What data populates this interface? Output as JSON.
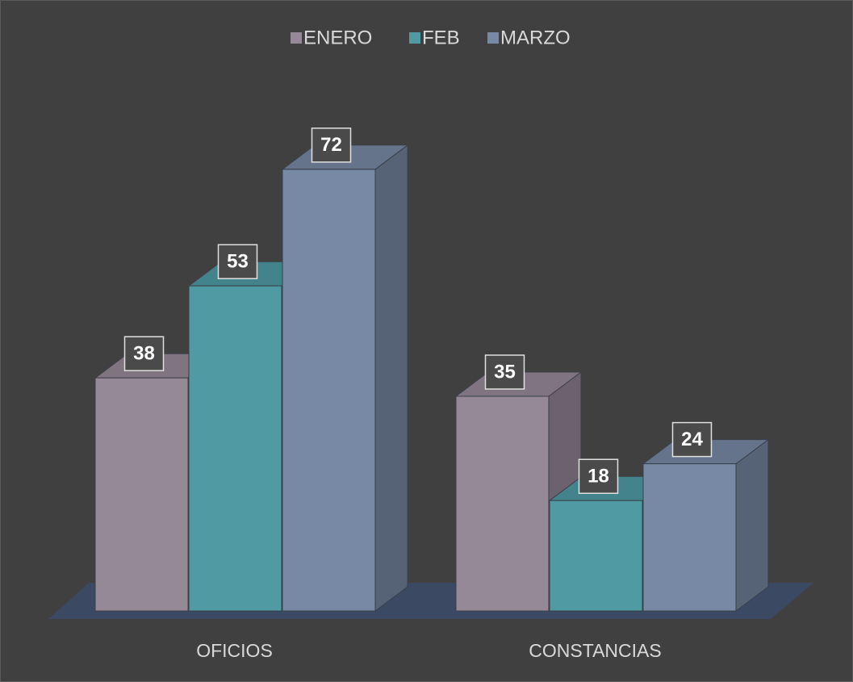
{
  "chart_data": {
    "type": "bar3d",
    "categories": [
      "OFICIOS",
      "CONSTANCIAS"
    ],
    "series": [
      {
        "name": "ENERO",
        "color": "#958897",
        "values": [
          38,
          35
        ]
      },
      {
        "name": "FEB",
        "color": "#4f9aa3",
        "values": [
          53,
          18
        ]
      },
      {
        "name": "MARZO",
        "color": "#7789a4",
        "values": [
          72,
          24
        ]
      }
    ],
    "legend": "top"
  }
}
